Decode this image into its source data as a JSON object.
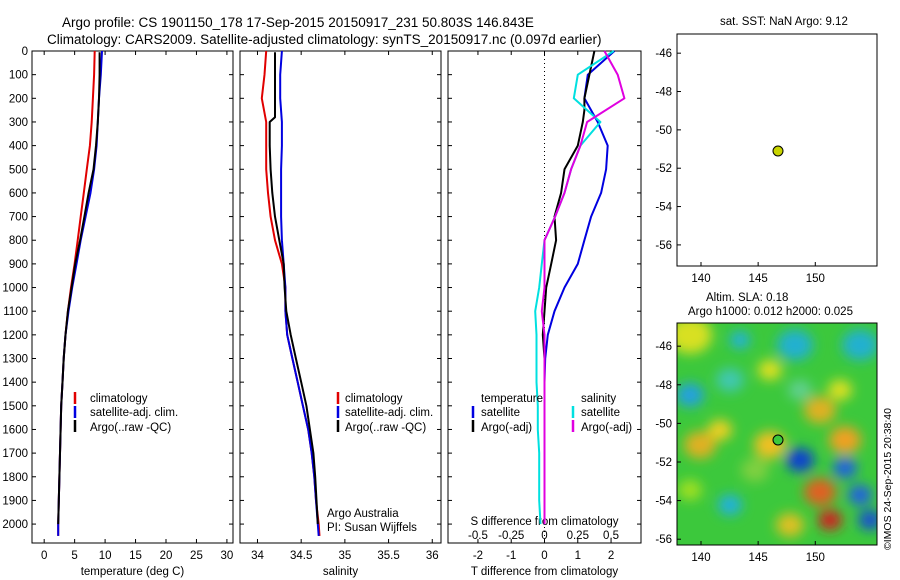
{
  "header": {
    "title_line1": "Argo profile: CS 1901150_178 17-Sep-2015 20150917_231 50.803S 146.843E",
    "title_line2": "Climatology: CARS2009. Satellite-adjusted climatology: synTS_20150917.nc (0.097d earlier)"
  },
  "sst_panel": {
    "title": "sat. SST: NaN Argo: 9.12",
    "xticks": [
      "140",
      "145",
      "150"
    ],
    "yticks": [
      "-46",
      "-48",
      "-50",
      "-52",
      "-54",
      "-56"
    ],
    "point_color": "#c8d400"
  },
  "sla_panel": {
    "title_line1": "Altim. SLA: 0.18",
    "title_line2": "Argo h1000: 0.012 h2000: 0.025",
    "xticks": [
      "140",
      "145",
      "150"
    ],
    "yticks": [
      "-46",
      "-48",
      "-50",
      "-52",
      "-54",
      "-56"
    ],
    "side_label": "©IMOS 24-Sep-2015 20:38:40"
  },
  "depth_ticks": [
    "0",
    "100",
    "200",
    "300",
    "400",
    "500",
    "600",
    "700",
    "800",
    "900",
    "1000",
    "1100",
    "1200",
    "1300",
    "1400",
    "1500",
    "1600",
    "1700",
    "1800",
    "1900",
    "2000"
  ],
  "legends": {
    "temp": [
      "climatology",
      "satellite-adj. clim.",
      "Argo(..raw -QC)"
    ],
    "sal": [
      "climatology",
      "satellite-adj. clim.",
      "Argo(..raw -QC)"
    ],
    "diff_temp_head": "temperature",
    "diff_sal_head": "salinity",
    "diff_temp": [
      "satellite",
      "Argo(-adj)"
    ],
    "diff_sal": [
      "satellite",
      "Argo(-adj)"
    ]
  },
  "annotations": {
    "argo_line1": "Argo Australia",
    "argo_line2": "PI: Susan Wijffels"
  },
  "colors": {
    "climatology": "#e00000",
    "satellite": "#0000e0",
    "argo": "#000000",
    "sal_satellite": "#00e0e0",
    "sal_argo": "#e000e0"
  },
  "chart_data": [
    {
      "type": "line",
      "xlabel": "temperature (deg C)",
      "xticks": [
        "0",
        "5",
        "10",
        "15",
        "20",
        "25",
        "30"
      ],
      "xlim": [
        -2,
        31
      ],
      "ylim": [
        2080,
        0
      ],
      "series": [
        {
          "name": "climatology",
          "x": [
            8.3,
            8.2,
            8.0,
            7.8,
            7.5,
            7.0,
            6.5,
            6.0,
            5.5,
            5.0,
            4.4,
            3.9,
            3.5,
            3.2,
            3.0,
            2.8,
            2.7,
            2.6,
            2.5,
            2.4,
            2.3,
            2.3
          ],
          "y": [
            0,
            100,
            200,
            300,
            400,
            500,
            600,
            700,
            800,
            900,
            1000,
            1100,
            1200,
            1300,
            1400,
            1500,
            1600,
            1700,
            1800,
            1900,
            2000,
            2050
          ]
        },
        {
          "name": "satellite-adj. clim.",
          "x": [
            9.5,
            9.3,
            9.0,
            8.8,
            8.6,
            8.2,
            7.6,
            6.8,
            6.0,
            5.3,
            4.6,
            4.0,
            3.5,
            3.2,
            3.0,
            2.8,
            2.7,
            2.6,
            2.5,
            2.4,
            2.3,
            2.3
          ],
          "y": [
            0,
            100,
            200,
            300,
            400,
            500,
            600,
            700,
            800,
            900,
            1000,
            1100,
            1200,
            1300,
            1400,
            1500,
            1600,
            1700,
            1800,
            1900,
            2000,
            2050
          ]
        },
        {
          "name": "Argo(..raw -QC)",
          "x": [
            9.1,
            9.1,
            9.0,
            8.8,
            8.5,
            8.1,
            7.3,
            6.6,
            5.9,
            5.1,
            4.5,
            3.9,
            3.5,
            3.2,
            3.0,
            2.8,
            2.7,
            2.6,
            2.5,
            2.4,
            2.3
          ],
          "y": [
            5,
            100,
            200,
            300,
            400,
            500,
            600,
            700,
            800,
            900,
            1000,
            1100,
            1200,
            1300,
            1400,
            1500,
            1600,
            1700,
            1800,
            1900,
            2000
          ]
        }
      ]
    },
    {
      "type": "line",
      "xlabel": "salinity",
      "xticks": [
        "34",
        "34.5",
        "35",
        "35.5",
        "36"
      ],
      "xlim": [
        33.8,
        36.1
      ],
      "ylim": [
        2080,
        0
      ],
      "series": [
        {
          "name": "climatology",
          "x": [
            34.1,
            34.08,
            34.05,
            34.1,
            34.1,
            34.1,
            34.12,
            34.15,
            34.2,
            34.28,
            34.32,
            34.32,
            34.34,
            34.4,
            34.46,
            34.52,
            34.58,
            34.62,
            34.65,
            34.67,
            34.7,
            34.71
          ],
          "y": [
            0,
            100,
            200,
            300,
            400,
            500,
            600,
            700,
            800,
            900,
            1000,
            1100,
            1200,
            1300,
            1400,
            1500,
            1600,
            1700,
            1800,
            1900,
            2000,
            2050
          ]
        },
        {
          "name": "satellite-adj. clim.",
          "x": [
            34.28,
            34.26,
            34.26,
            34.28,
            34.28,
            34.27,
            34.27,
            34.27,
            34.28,
            34.3,
            34.32,
            34.32,
            34.34,
            34.4,
            34.46,
            34.52,
            34.58,
            34.62,
            34.65,
            34.67,
            34.69,
            34.7
          ],
          "y": [
            0,
            100,
            200,
            300,
            400,
            500,
            600,
            700,
            800,
            900,
            1000,
            1100,
            1200,
            1300,
            1400,
            1500,
            1600,
            1700,
            1800,
            1900,
            2000,
            2050
          ]
        },
        {
          "name": "Argo(..raw -QC)",
          "x": [
            34.2,
            34.2,
            34.2,
            34.2,
            34.14,
            34.14,
            34.15,
            34.17,
            34.2,
            34.25,
            34.3,
            34.31,
            34.33,
            34.38,
            34.44,
            34.5,
            34.56,
            34.6,
            34.64,
            34.66,
            34.69
          ],
          "y": [
            5,
            100,
            200,
            280,
            300,
            400,
            500,
            600,
            700,
            800,
            900,
            1000,
            1100,
            1200,
            1300,
            1400,
            1500,
            1600,
            1700,
            1800,
            2000
          ]
        }
      ]
    },
    {
      "type": "line",
      "xlabel": "T difference from climatology",
      "xticks": [
        "-2",
        "-1",
        "0",
        "1",
        "2"
      ],
      "top_label": "S difference from climatology",
      "top_ticks": [
        "-0.5",
        "-0.25",
        "0",
        "0.25",
        "0.5"
      ],
      "xlim": [
        -2.9,
        2.9
      ],
      "ylim": [
        2080,
        0
      ],
      "series": [
        {
          "name": "satellite",
          "x": [
            2.1,
            1.3,
            1.2,
            1.6,
            1.9,
            1.85,
            1.7,
            1.4,
            1.2,
            1.0,
            0.6,
            0.3,
            0.1,
            0.02,
            0.0,
            0.0,
            0.0,
            0.0,
            0.0,
            0.0,
            0.0
          ],
          "y": [
            0,
            100,
            200,
            300,
            400,
            500,
            600,
            700,
            800,
            900,
            1000,
            1100,
            1200,
            1300,
            1400,
            1500,
            1600,
            1700,
            1800,
            1900,
            2000
          ]
        },
        {
          "name": "Argo(-adj)",
          "x": [
            1.5,
            1.2,
            1.2,
            1.15,
            1.0,
            0.6,
            0.5,
            0.3,
            0.35,
            0.2,
            0.05,
            0.0,
            -0.05,
            0.0,
            0.0,
            0.0,
            0.0,
            0.0,
            0.0,
            0.0
          ],
          "y": [
            0,
            200,
            250,
            300,
            400,
            500,
            600,
            700,
            800,
            900,
            1000,
            1100,
            1200,
            1300,
            1400,
            1500,
            1600,
            1700,
            1800,
            1900
          ]
        },
        {
          "name": "satellite (salinity)",
          "x": [
            0.52,
            0.25,
            0.22,
            0.42,
            0.27,
            0.2,
            0.15,
            0.08,
            0.0,
            -0.02,
            -0.04,
            -0.07,
            -0.06,
            -0.06,
            -0.06,
            -0.05,
            -0.05,
            -0.04,
            -0.04,
            -0.04,
            -0.03
          ],
          "y": [
            0,
            100,
            200,
            300,
            400,
            500,
            600,
            700,
            800,
            900,
            1000,
            1100,
            1200,
            1300,
            1400,
            1500,
            1600,
            1700,
            1800,
            1900,
            2000
          ]
        },
        {
          "name": "Argo(-adj) (salinity)",
          "x": [
            0.45,
            0.55,
            0.6,
            0.32,
            0.27,
            0.2,
            0.15,
            0.08,
            0.0,
            0.0,
            0.0,
            -0.02,
            0.0,
            0.0,
            0.0,
            0.0,
            0.0,
            0.0,
            0.0,
            0.0,
            0.0
          ],
          "y": [
            0,
            100,
            200,
            300,
            400,
            500,
            600,
            700,
            800,
            900,
            1000,
            1100,
            1200,
            1300,
            1400,
            1500,
            1600,
            1700,
            1800,
            1900,
            2000
          ]
        }
      ]
    }
  ]
}
